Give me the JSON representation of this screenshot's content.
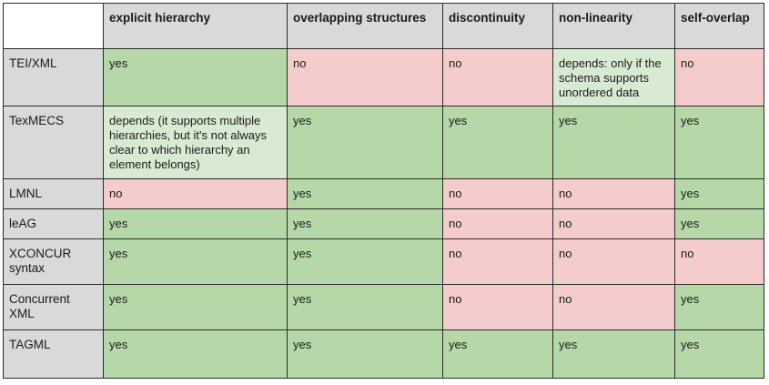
{
  "colors": {
    "yes": "#b6d7a8",
    "no": "#f4cccc",
    "depends": "#d9ead3",
    "header": "#d9d9d9"
  },
  "columns": [
    "explicit hierarchy",
    "overlapping structures",
    "discontinuity",
    "non-linearity",
    "self-overlap"
  ],
  "rows": [
    {
      "name": "TEI/XML",
      "cells": [
        {
          "text": "yes",
          "status": "yes"
        },
        {
          "text": "no",
          "status": "no"
        },
        {
          "text": "no",
          "status": "no"
        },
        {
          "text": "depends: only if the schema supports unordered data",
          "status": "depends"
        },
        {
          "text": "no",
          "status": "no"
        }
      ]
    },
    {
      "name": "TexMECS",
      "cells": [
        {
          "text": "depends (it supports multiple hierarchies, but it's not always clear to which hierarchy an element belongs)",
          "status": "depends"
        },
        {
          "text": "yes",
          "status": "yes"
        },
        {
          "text": "yes",
          "status": "yes"
        },
        {
          "text": "yes",
          "status": "yes"
        },
        {
          "text": "yes",
          "status": "yes"
        }
      ]
    },
    {
      "name": "LMNL",
      "cells": [
        {
          "text": "no",
          "status": "no"
        },
        {
          "text": "yes",
          "status": "yes"
        },
        {
          "text": "no",
          "status": "no"
        },
        {
          "text": "no",
          "status": "no"
        },
        {
          "text": "yes",
          "status": "yes"
        }
      ]
    },
    {
      "name": "leAG",
      "cells": [
        {
          "text": "yes",
          "status": "yes"
        },
        {
          "text": "yes",
          "status": "yes"
        },
        {
          "text": "no",
          "status": "no"
        },
        {
          "text": "no",
          "status": "no"
        },
        {
          "text": "yes",
          "status": "yes"
        }
      ]
    },
    {
      "name": "XCONCUR syntax",
      "cells": [
        {
          "text": "yes",
          "status": "yes"
        },
        {
          "text": "yes",
          "status": "yes"
        },
        {
          "text": "no",
          "status": "no"
        },
        {
          "text": "no",
          "status": "no"
        },
        {
          "text": "no",
          "status": "no"
        }
      ]
    },
    {
      "name": "Concurrent XML",
      "cells": [
        {
          "text": "yes",
          "status": "yes"
        },
        {
          "text": "yes",
          "status": "yes"
        },
        {
          "text": "no",
          "status": "no"
        },
        {
          "text": "no",
          "status": "no"
        },
        {
          "text": "yes",
          "status": "yes"
        }
      ]
    },
    {
      "name": "TAGML",
      "cells": [
        {
          "text": "yes",
          "status": "yes"
        },
        {
          "text": "yes",
          "status": "yes"
        },
        {
          "text": "yes",
          "status": "yes"
        },
        {
          "text": "yes",
          "status": "yes"
        },
        {
          "text": "yes",
          "status": "yes"
        }
      ]
    }
  ]
}
